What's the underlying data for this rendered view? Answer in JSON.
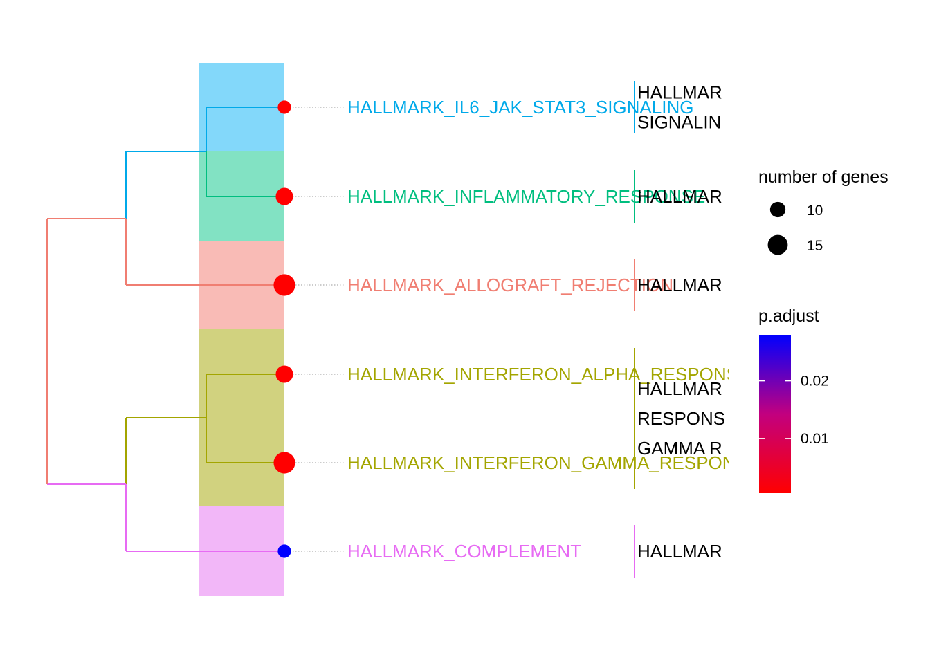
{
  "chart_data": {
    "type": "treeplot",
    "title": "",
    "terms": [
      {
        "label": "HALLMARK_IL6_JAK_STAT3_SIGNALING",
        "count": 8,
        "p_adjust": 0.0005,
        "cluster": 0,
        "color": "#00A9E9"
      },
      {
        "label": "HALLMARK_INFLAMMATORY_RESPONSE",
        "count": 12,
        "p_adjust": 0.0005,
        "cluster": 1,
        "color": "#00BE7F"
      },
      {
        "label": "HALLMARK_ALLOGRAFT_REJECTION",
        "count": 17,
        "p_adjust": 0.0005,
        "cluster": 2,
        "color": "#F07E72"
      },
      {
        "label": "HALLMARK_INTERFERON_ALPHA_RESPONSE",
        "count": 12,
        "p_adjust": 0.0005,
        "cluster": 3,
        "color": "#A3A500"
      },
      {
        "label": "HALLMARK_INTERFERON_GAMMA_RESPONSE",
        "count": 17,
        "p_adjust": 0.0005,
        "cluster": 3,
        "color": "#A3A500"
      },
      {
        "label": "HALLMARK_COMPLEMENT",
        "count": 8,
        "p_adjust": 0.028,
        "cluster": 4,
        "color": "#E76BF3"
      }
    ],
    "clusters": [
      {
        "lines": [
          "HALLMAR",
          "SIGNALIN"
        ],
        "color": "#00A9E9",
        "fill": "#83D8FA"
      },
      {
        "lines": [
          "HALLMAR"
        ],
        "color": "#00BE7F",
        "fill": "#82E2C3"
      },
      {
        "lines": [
          "HALLMAR"
        ],
        "color": "#F07E72",
        "fill": "#F9BBB6"
      },
      {
        "lines": [
          "HALLMAR",
          "RESPONS",
          "GAMMA R"
        ],
        "color": "#A3A500",
        "fill": "#D1D27F"
      },
      {
        "lines": [
          "HALLMAR"
        ],
        "color": "#E76BF3",
        "fill": "#F2B7F8"
      }
    ],
    "tree": {
      "root_color": "#F07E72",
      "lower_group_color": "#E76BF3"
    },
    "legend": {
      "size_title": "number of genes",
      "size_items": [
        {
          "label": "10",
          "value": 10
        },
        {
          "label": "15",
          "value": 15
        }
      ],
      "color_title": "p.adjust",
      "color_ticks": [
        {
          "label": "0.02",
          "value": 0.02
        },
        {
          "label": "0.01",
          "value": 0.01
        }
      ],
      "color_range": [
        0.0005,
        0.028
      ],
      "color_low": "#FF0000",
      "color_high": "#0000FF"
    }
  }
}
